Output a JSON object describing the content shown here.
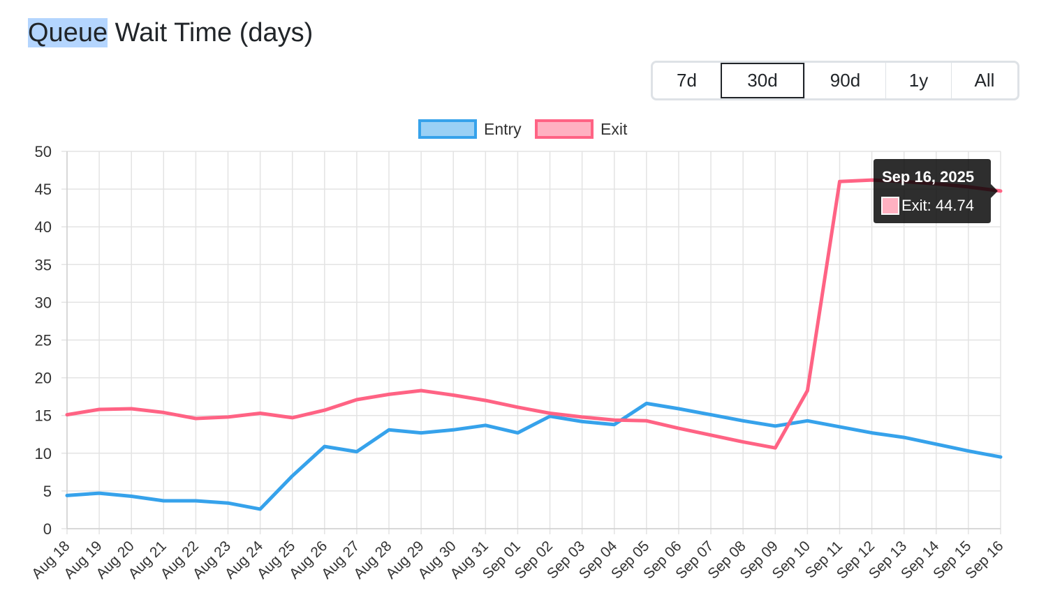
{
  "title": {
    "highlighted": "Queue",
    "rest": " Wait Time (days)"
  },
  "range_buttons": [
    {
      "label": "7d",
      "active": false
    },
    {
      "label": "30d",
      "active": true
    },
    {
      "label": "90d",
      "active": false
    },
    {
      "label": "1y",
      "active": false
    },
    {
      "label": "All",
      "active": false
    }
  ],
  "tooltip": {
    "title": "Sep 16, 2025",
    "label": "Exit: 44.74",
    "series": "Exit",
    "category": "Sep 16"
  },
  "chart_data": {
    "type": "line",
    "title": "",
    "xlabel": "",
    "ylabel": "",
    "ylim": [
      0,
      50
    ],
    "yticks": [
      0,
      5,
      10,
      15,
      20,
      25,
      30,
      35,
      40,
      45,
      50
    ],
    "grid": true,
    "legend_position": "top",
    "categories": [
      "Aug 18",
      "Aug 19",
      "Aug 20",
      "Aug 21",
      "Aug 22",
      "Aug 23",
      "Aug 24",
      "Aug 25",
      "Aug 26",
      "Aug 27",
      "Aug 28",
      "Aug 29",
      "Aug 30",
      "Aug 31",
      "Sep 01",
      "Sep 02",
      "Sep 03",
      "Sep 04",
      "Sep 05",
      "Sep 06",
      "Sep 07",
      "Sep 08",
      "Sep 09",
      "Sep 10",
      "Sep 11",
      "Sep 12",
      "Sep 13",
      "Sep 14",
      "Sep 15",
      "Sep 16"
    ],
    "series": [
      {
        "name": "Entry",
        "color": "#36a2eb",
        "fill": "#9ad0f5",
        "values": [
          4.4,
          4.7,
          4.3,
          3.7,
          3.7,
          3.4,
          2.6,
          7.0,
          10.9,
          10.2,
          13.1,
          12.7,
          13.1,
          13.7,
          12.7,
          14.9,
          14.2,
          13.8,
          16.6,
          15.9,
          15.1,
          14.3,
          13.6,
          14.3,
          13.5,
          12.7,
          12.1,
          11.2,
          10.3,
          9.5
        ]
      },
      {
        "name": "Exit",
        "color": "#ff6384",
        "fill": "#ffb1c1",
        "values": [
          15.1,
          15.8,
          15.9,
          15.4,
          14.6,
          14.8,
          15.3,
          14.7,
          15.7,
          17.1,
          17.8,
          18.3,
          17.7,
          17.0,
          16.1,
          15.3,
          14.8,
          14.4,
          14.3,
          13.3,
          12.4,
          11.5,
          10.7,
          18.3,
          46.0,
          46.2,
          46.0,
          45.7,
          45.3,
          44.74
        ]
      }
    ]
  }
}
